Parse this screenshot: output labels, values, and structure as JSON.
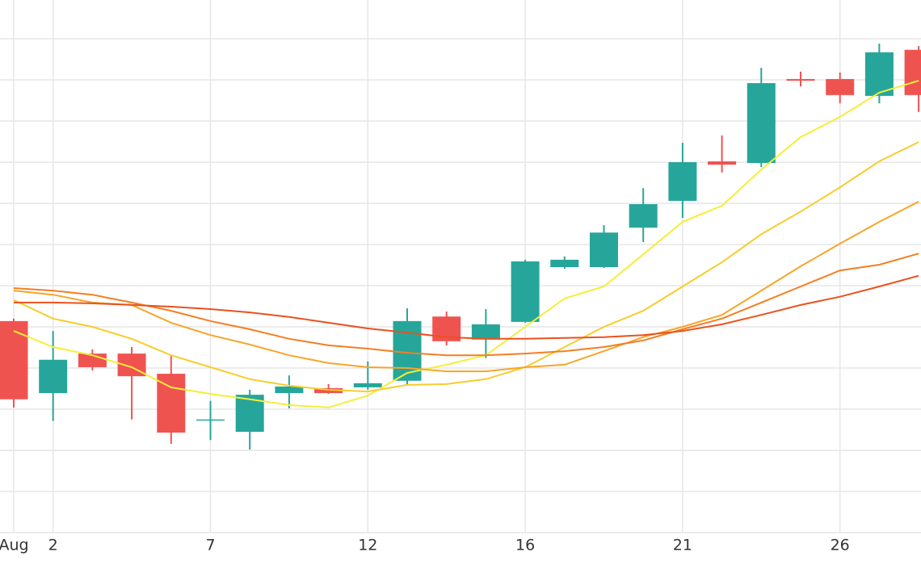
{
  "chart_data": {
    "type": "candlestick",
    "categories": [
      "Aug",
      "2",
      null,
      null,
      null,
      "7",
      null,
      null,
      null,
      "12",
      null,
      null,
      null,
      "16",
      null,
      null,
      null,
      "21",
      null,
      null,
      null,
      "26",
      null,
      null
    ],
    "open": [
      5.14,
      3.39,
      4.35,
      4.35,
      3.86,
      2.73,
      2.45,
      3.39,
      3.51,
      3.53,
      3.69,
      5.25,
      4.69,
      5.12,
      6.45,
      6.45,
      7.41,
      8.06,
      9.02,
      8.98,
      11.02,
      11.02,
      10.61,
      11.73
    ],
    "high": [
      5.2,
      4.9,
      4.45,
      4.51,
      4.31,
      3.2,
      3.47,
      3.82,
      3.61,
      4.16,
      5.45,
      5.37,
      5.43,
      6.63,
      6.71,
      7.47,
      8.37,
      9.47,
      9.65,
      11.29,
      11.2,
      11.18,
      11.88,
      11.82
    ],
    "low": [
      3.04,
      2.71,
      3.94,
      2.75,
      2.16,
      2.25,
      2.02,
      3.02,
      3.37,
      3.47,
      3.59,
      4.55,
      4.24,
      5.1,
      6.41,
      6.43,
      7.06,
      7.65,
      8.75,
      8.88,
      10.84,
      10.43,
      10.43,
      10.22
    ],
    "close": [
      3.24,
      4.2,
      4.02,
      3.8,
      2.43,
      2.75,
      3.35,
      3.55,
      3.39,
      3.63,
      5.14,
      4.65,
      5.06,
      6.59,
      6.63,
      7.29,
      7.98,
      9.0,
      8.94,
      10.92,
      10.98,
      10.63,
      11.67,
      10.63
    ],
    "up_color": "#26a69a",
    "down_color": "#ef5350",
    "overlays": [
      {
        "color": "#f5ee3a",
        "values": [
          4.9,
          4.51,
          4.31,
          4.02,
          3.53,
          3.37,
          3.24,
          3.1,
          3.04,
          3.33,
          3.88,
          4.08,
          4.31,
          5.0,
          5.69,
          5.98,
          6.76,
          7.55,
          7.94,
          8.82,
          9.61,
          10.1,
          10.69,
          10.98
        ]
      },
      {
        "color": "#f8cc2c",
        "values": [
          5.65,
          5.2,
          5.0,
          4.71,
          4.31,
          4.02,
          3.73,
          3.57,
          3.47,
          3.43,
          3.59,
          3.61,
          3.73,
          4.02,
          4.51,
          5.0,
          5.39,
          5.98,
          6.57,
          7.25,
          7.8,
          8.39,
          9.02,
          9.49
        ]
      },
      {
        "color": "#f7a52a",
        "values": [
          5.88,
          5.78,
          5.59,
          5.53,
          5.1,
          4.8,
          4.57,
          4.31,
          4.12,
          4.02,
          4.0,
          3.92,
          3.92,
          4.02,
          4.08,
          4.41,
          4.75,
          5.0,
          5.29,
          5.88,
          6.47,
          7.02,
          7.55,
          8.04
        ]
      },
      {
        "color": "#f47e22",
        "values": [
          5.94,
          5.88,
          5.78,
          5.59,
          5.39,
          5.14,
          4.94,
          4.71,
          4.55,
          4.47,
          4.37,
          4.31,
          4.31,
          4.35,
          4.41,
          4.51,
          4.67,
          4.94,
          5.2,
          5.59,
          5.98,
          6.37,
          6.51,
          6.78
        ]
      },
      {
        "color": "#e9521d",
        "values": [
          5.59,
          5.59,
          5.57,
          5.53,
          5.49,
          5.43,
          5.35,
          5.24,
          5.1,
          4.96,
          4.86,
          4.75,
          4.71,
          4.71,
          4.73,
          4.75,
          4.8,
          4.9,
          5.06,
          5.29,
          5.53,
          5.73,
          5.98,
          6.24
        ]
      }
    ],
    "ylim": [
      0,
      12.94
    ],
    "ygrid": [
      1,
      2,
      3,
      4,
      5,
      6,
      7,
      8,
      9,
      10,
      11,
      12
    ]
  }
}
